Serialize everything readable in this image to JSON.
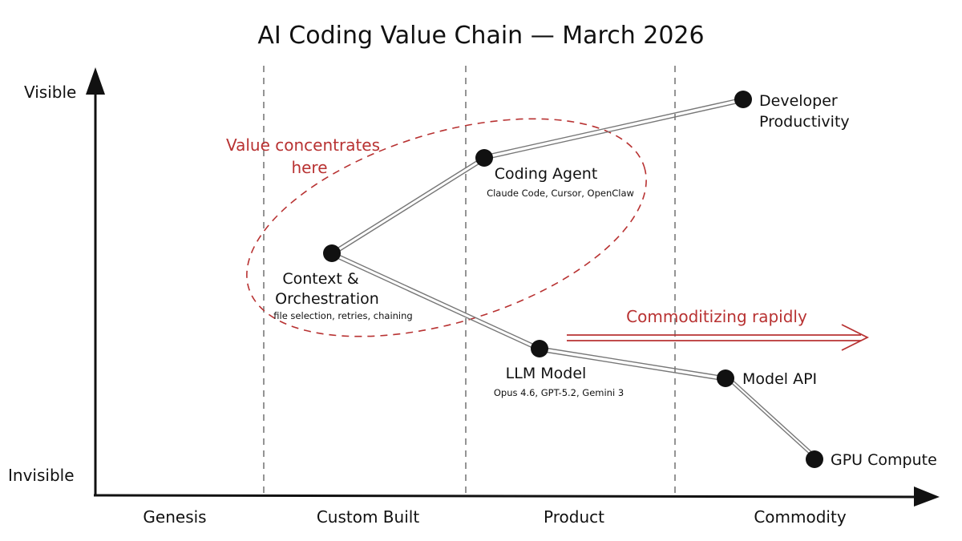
{
  "title": "AI Coding Value Chain — March 2026",
  "axes": {
    "y_top": "Visible",
    "y_bottom": "Invisible"
  },
  "stages": [
    "Genesis",
    "Custom Built",
    "Product",
    "Commodity"
  ],
  "nodes": {
    "developer": {
      "label1": "Developer",
      "label2": "Productivity"
    },
    "agent": {
      "label": "Coding Agent",
      "sub": "Claude Code, Cursor, OpenClaw"
    },
    "context": {
      "label1": "Context &",
      "label2": "Orchestration",
      "sub": "file selection, retries, chaining"
    },
    "llm": {
      "label": "LLM Model",
      "sub": "Opus 4.6, GPT-5.2, Gemini 3"
    },
    "api": {
      "label": "Model API"
    },
    "gpu": {
      "label": "GPU Compute"
    }
  },
  "annotations": {
    "value_line1": "Value concentrates",
    "value_line2": "here",
    "commoditizing": "Commoditizing rapidly"
  },
  "colors": {
    "ink": "#111111",
    "accent": "#b83232",
    "link": "#777777"
  }
}
